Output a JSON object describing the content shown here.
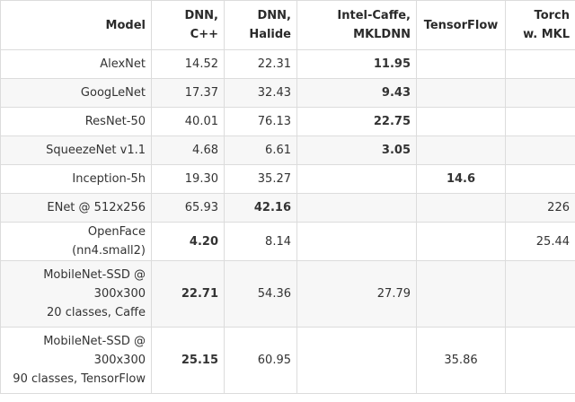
{
  "headers": [
    [
      "Model"
    ],
    [
      "DNN,",
      "C++"
    ],
    [
      "DNN,",
      "Halide"
    ],
    [
      "Intel-Caffe,",
      "MKLDNN"
    ],
    [
      "TensorFlow"
    ],
    [
      "Torch",
      "w. MKL"
    ]
  ],
  "rows": [
    {
      "model": [
        "AlexNet"
      ],
      "cells": [
        "14.52",
        "22.31",
        "11.95",
        "",
        ""
      ],
      "bold": [
        false,
        false,
        true,
        false,
        false
      ]
    },
    {
      "model": [
        "GoogLeNet"
      ],
      "cells": [
        "17.37",
        "32.43",
        "9.43",
        "",
        ""
      ],
      "bold": [
        false,
        false,
        true,
        false,
        false
      ]
    },
    {
      "model": [
        "ResNet-50"
      ],
      "cells": [
        "40.01",
        "76.13",
        "22.75",
        "",
        ""
      ],
      "bold": [
        false,
        false,
        true,
        false,
        false
      ]
    },
    {
      "model": [
        "SqueezeNet v1.1"
      ],
      "cells": [
        "4.68",
        "6.61",
        "3.05",
        "",
        ""
      ],
      "bold": [
        false,
        false,
        true,
        false,
        false
      ]
    },
    {
      "model": [
        "Inception-5h"
      ],
      "cells": [
        "19.30",
        "35.27",
        "",
        "14.6",
        ""
      ],
      "bold": [
        false,
        false,
        false,
        true,
        false
      ]
    },
    {
      "model": [
        "ENet @ 512x256"
      ],
      "cells": [
        "65.93",
        "42.16",
        "",
        "",
        "226"
      ],
      "bold": [
        false,
        true,
        false,
        false,
        false
      ]
    },
    {
      "model": [
        "OpenFace",
        "(nn4.small2)"
      ],
      "cells": [
        "4.20",
        "8.14",
        "",
        "",
        "25.44"
      ],
      "bold": [
        true,
        false,
        false,
        false,
        false
      ]
    },
    {
      "model": [
        "MobileNet-SSD @",
        "300x300",
        "20 classes, Caffe"
      ],
      "cells": [
        "22.71",
        "54.36",
        "27.79",
        "",
        ""
      ],
      "bold": [
        true,
        false,
        false,
        false,
        false
      ]
    },
    {
      "model": [
        "MobileNet-SSD @",
        "300x300",
        "90 classes, TensorFlow"
      ],
      "cells": [
        "25.15",
        "60.95",
        "",
        "35.86",
        ""
      ],
      "bold": [
        true,
        false,
        false,
        false,
        false
      ]
    }
  ]
}
